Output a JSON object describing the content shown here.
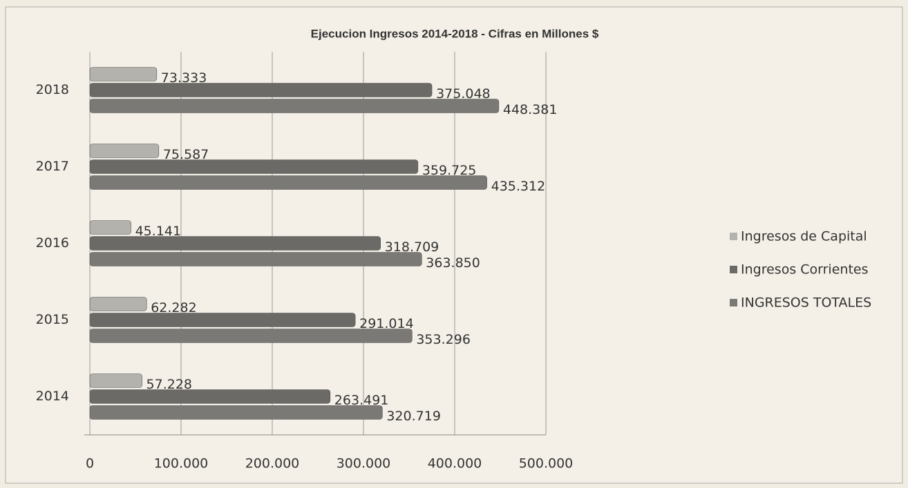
{
  "chart_data": {
    "type": "hbar",
    "title": "Ejecucion Ingresos 2014-2018 - Cifras en Millones $",
    "categories": [
      "2014",
      "2015",
      "2016",
      "2017",
      "2018"
    ],
    "series": [
      {
        "name": "Ingresos de Capital",
        "color": "#b4b2ad",
        "values": [
          57228,
          62282,
          45141,
          75587,
          73333
        ],
        "value_labels": [
          "57.228",
          "62.282",
          "45.141",
          "75.587",
          "73.333"
        ]
      },
      {
        "name": "Ingresos Corrientes",
        "color": "#6b6a67",
        "values": [
          263491,
          291014,
          318709,
          359725,
          375048
        ],
        "value_labels": [
          "263.491",
          "291.014",
          "318.709",
          "359.725",
          "375.048"
        ]
      },
      {
        "name": "INGRESOS TOTALES",
        "color": "#7a7976",
        "values": [
          320719,
          353296,
          363850,
          435312,
          448381
        ],
        "value_labels": [
          "320.719",
          "353.296",
          "363.850",
          "435.312",
          "448.381"
        ]
      }
    ],
    "xlim": [
      0,
      500000
    ],
    "xticks": [
      0,
      {
        "value": 100000,
        "label": "100.000"
      },
      {
        "value": 200000,
        "label": "200.000"
      },
      {
        "value": 300000,
        "label": "300.000"
      },
      {
        "value": 400000,
        "label": "400.000"
      },
      {
        "value": 500000,
        "label": "500.000"
      }
    ],
    "grid": true,
    "legend": "right"
  }
}
